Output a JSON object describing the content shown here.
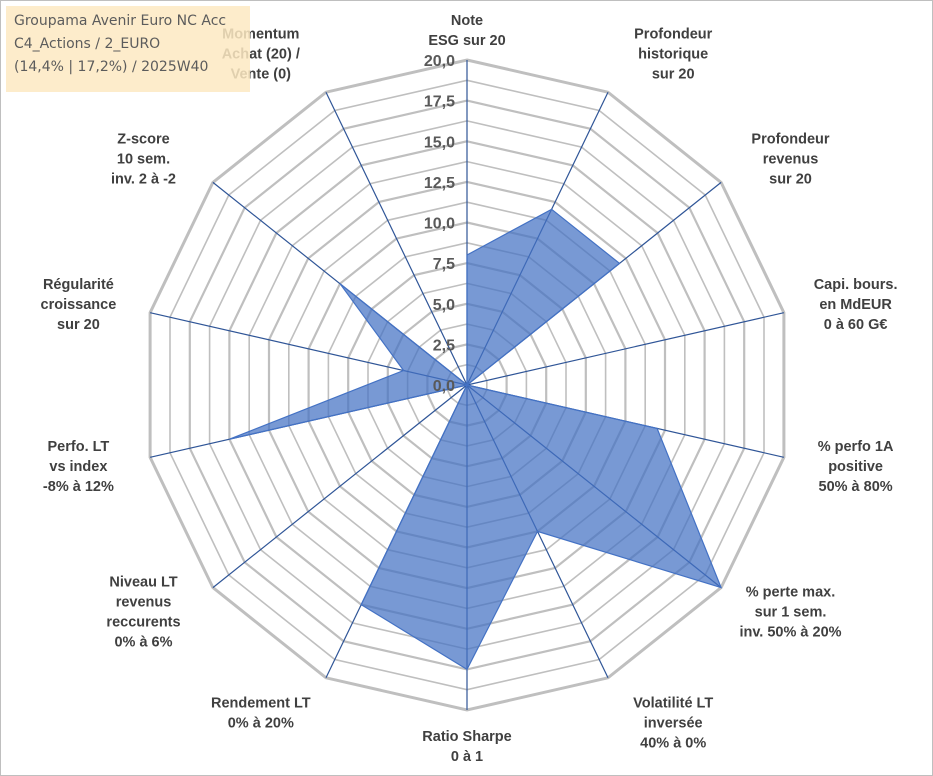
{
  "title_lines": [
    "Groupama Avenir Euro NC Acc",
    "C4_Actions / 2_EURO",
    "(14,4% | 17,2%) / 2025W40"
  ],
  "colors": {
    "fill": "#4472c4",
    "grid": "#bfbfbf",
    "spokes": "#2f5597"
  },
  "chart_data": {
    "type": "radar",
    "title": "Groupama Avenir Euro NC Acc",
    "rmin": 0,
    "rmax": 20,
    "ticks": [
      "0,0",
      "2,5",
      "5,0",
      "7,5",
      "10,0",
      "12,5",
      "15,0",
      "17,5",
      "20,0"
    ],
    "axes": [
      {
        "label": [
          "Note",
          "ESG sur 20"
        ],
        "value": 8
      },
      {
        "label": [
          "Profondeur",
          "historique",
          "sur 20"
        ],
        "value": 12
      },
      {
        "label": [
          "Profondeur",
          "revenus",
          "sur 20"
        ],
        "value": 12
      },
      {
        "label": [
          "Capi. bours.",
          "en MdEUR",
          "0 à 60 G€"
        ],
        "value": 0
      },
      {
        "label": [
          "% perfo 1A",
          "positive",
          "50% à 80%"
        ],
        "value": 12
      },
      {
        "label": [
          "% perte max.",
          "sur 1 sem.",
          "inv. 50% à 20%"
        ],
        "value": 20
      },
      {
        "label": [
          "Volatilité LT",
          "inversée",
          "40% à 0%"
        ],
        "value": 10
      },
      {
        "label": [
          "Ratio Sharpe",
          "0 à 1"
        ],
        "value": 17.5
      },
      {
        "label": [
          "Rendement LT",
          "0% à 20%"
        ],
        "value": 15
      },
      {
        "label": [
          "Niveau LT",
          "revenus",
          "reccurents",
          "0% à 6%"
        ],
        "value": 0
      },
      {
        "label": [
          "Perfo. LT",
          "vs index",
          "-8% à 12%"
        ],
        "value": 15
      },
      {
        "label": [
          "Régularité",
          "croissance",
          "sur 20"
        ],
        "value": 4
      },
      {
        "label": [
          "Z-score",
          "10 sem.",
          "inv. 2 à -2"
        ],
        "value": 10
      },
      {
        "label": [
          "Momentum",
          "Achat (20) /",
          "Vente (0)"
        ],
        "value": 0
      }
    ]
  }
}
